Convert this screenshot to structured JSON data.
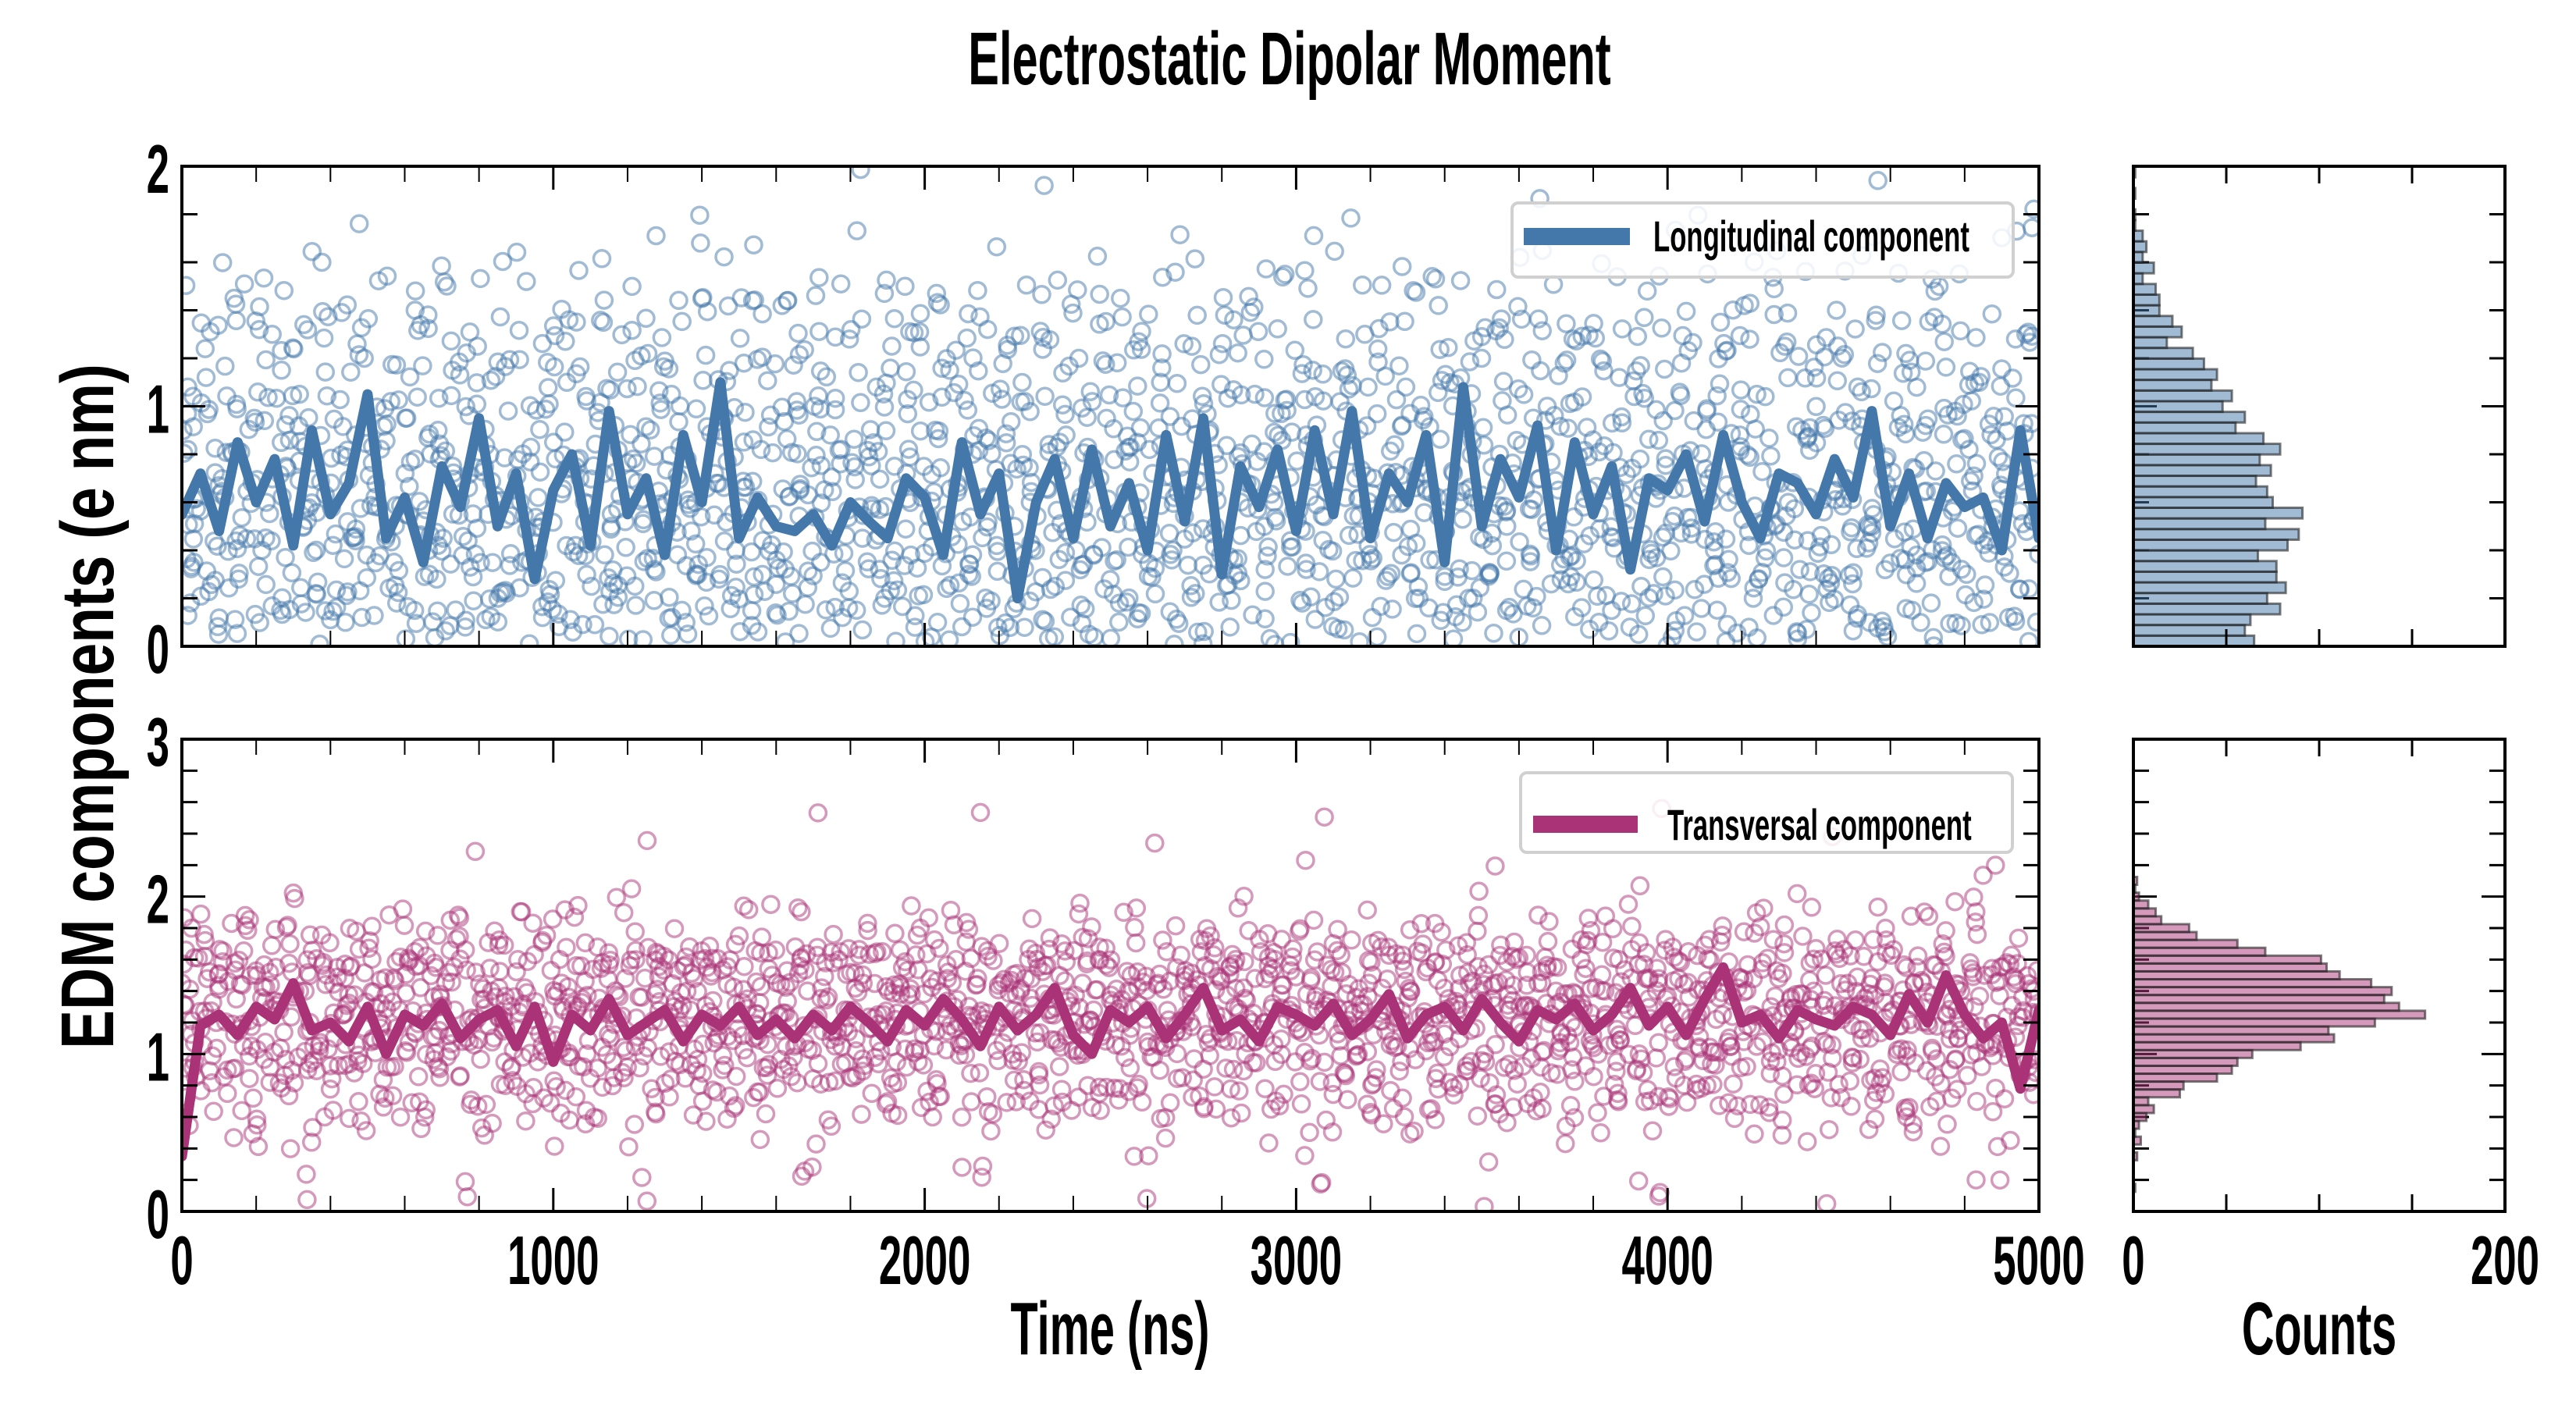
{
  "chart_data": {
    "type": "scatter",
    "title": "Electrostatic Dipolar Moment",
    "ylabel": "EDM components (e nm)",
    "xlabel": "Time (ns)",
    "hist_xlabel": "Counts",
    "xlim": [
      0,
      5000
    ],
    "x_ticks": [
      "0",
      "1000",
      "2000",
      "3000",
      "4000",
      "5000"
    ],
    "x_minor_step": 200,
    "hist_xlim": [
      0,
      200
    ],
    "hist_x_ticks": [
      "0",
      "200"
    ],
    "hist_x_minor_step": 50,
    "colors": {
      "longitudinal": "#4477AA",
      "transversal": "#AA3377"
    },
    "panels": [
      {
        "name": "longitudinal",
        "legend": "Longitudinal component",
        "legend_position": "upper-right",
        "ylim": [
          0,
          2
        ],
        "y_ticks": [
          "0",
          "1",
          "2"
        ],
        "y_minor_step": 0.2,
        "line_x_step_ns": 50,
        "line": [
          0.55,
          0.72,
          0.48,
          0.85,
          0.6,
          0.78,
          0.42,
          0.9,
          0.55,
          0.68,
          1.05,
          0.45,
          0.62,
          0.35,
          0.75,
          0.58,
          0.95,
          0.5,
          0.72,
          0.28,
          0.65,
          0.8,
          0.42,
          0.98,
          0.55,
          0.7,
          0.38,
          0.88,
          0.6,
          1.1,
          0.45,
          0.62,
          0.5,
          0.48,
          0.55,
          0.42,
          0.6,
          0.52,
          0.45,
          0.7,
          0.62,
          0.38,
          0.85,
          0.55,
          0.72,
          0.2,
          0.6,
          0.78,
          0.45,
          0.82,
          0.5,
          0.68,
          0.4,
          0.88,
          0.52,
          0.95,
          0.3,
          0.75,
          0.58,
          0.82,
          0.48,
          0.9,
          0.55,
          0.98,
          0.45,
          0.72,
          0.6,
          0.88,
          0.35,
          1.08,
          0.5,
          0.78,
          0.62,
          0.92,
          0.4,
          0.85,
          0.55,
          0.75,
          0.32,
          0.7,
          0.65,
          0.8,
          0.52,
          0.88,
          0.6,
          0.45,
          0.72,
          0.68,
          0.55,
          0.78,
          0.62,
          0.98,
          0.5,
          0.72,
          0.45,
          0.68,
          0.58,
          0.62,
          0.4,
          0.9,
          0.45
        ],
        "scatter": [
          0.82,
          0.35,
          1.12,
          0.05,
          0.62,
          1.45,
          0.28,
          0.95,
          0.4,
          1.3,
          0.15,
          0.75,
          1.05,
          0.5,
          0.22,
          1.6,
          0.68,
          0.1,
          0.88,
          1.2,
          0.38,
          0.58,
          1.02,
          0.18,
          0.72,
          1.4,
          0.3,
          0.9,
          0.45,
          1.15,
          0.08,
          0.66,
          1.25,
          0.55,
          0.2,
          0.98,
          0.35,
          1.52,
          0.62,
          0.12,
          0.85,
          1.1,
          0.42,
          0.7,
          0.25,
          1.35,
          0.5,
          0.92,
          0.03,
          0.78,
          1.22,
          0.32,
          0.6,
          1.05,
          0.15,
          0.48,
          1.68,
          0.72,
          0.28,
          0.95,
          0.4,
          1.18,
          0.06,
          0.82,
          0.55,
          1.42,
          0.22,
          0.65,
          1.0,
          0.35,
          0.88,
          0.12,
          1.28,
          0.58,
          0.45,
          1.08,
          0.2,
          0.75,
          1.5,
          0.38,
          0.62,
          0.9,
          0.1,
          1.15,
          0.52,
          0.3,
          0.8,
          1.32,
          0.42,
          0.68,
          0.18,
          1.02,
          0.6,
          1.92,
          0.25,
          0.85,
          0.48,
          1.2,
          0.05,
          0.7,
          0.95,
          0.36,
          1.45,
          0.58,
          0.14,
          0.82,
          1.1,
          0.4,
          0.64,
          1.25,
          0.22,
          0.9,
          0.5,
          1.38,
          0.08,
          0.76,
          1.05,
          0.32,
          0.6,
          1.55,
          0.44,
          0.18,
          0.88,
          1.15,
          0.54,
          0.28,
          0.98,
          0.7,
          1.3,
          0.12,
          0.6,
          0.84,
          0.38,
          1.08,
          0.2,
          0.72,
          1.42,
          0.48,
          0.03,
          0.92,
          0.62,
          1.2,
          0.3,
          0.8,
          0.5,
          1.62,
          0.16,
          0.7,
          1.0,
          0.42,
          0.26,
          1.28,
          0.58,
          0.86,
          0.1,
          0.66,
          1.12,
          0.36,
          0.78,
          1.48,
          0.22,
          0.94,
          0.52,
          1.18,
          0.06,
          0.74,
          0.4,
          1.35,
          0.6,
          0.88,
          0.2,
          1.05,
          0.46,
          0.68,
          1.25,
          0.32,
          0.9,
          0.14,
          0.56,
          1.4,
          0.7,
          0.26,
          1.08,
          0.5,
          0.82,
          0.04,
          0.62,
          1.22,
          0.38,
          0.92,
          0.18,
          1.5,
          0.58,
          0.76,
          0.3,
          1.1,
          0.44,
          0.86,
          0.12,
          0.7,
          1.3,
          0.52
        ],
        "hist_bin_width": 0.0444,
        "hist_counts": [
          65,
          60,
          63,
          79,
          72,
          82,
          77,
          77,
          67,
          83,
          89,
          71,
          91,
          75,
          72,
          66,
          74,
          68,
          79,
          70,
          55,
          60,
          48,
          53,
          42,
          45,
          38,
          32,
          18,
          26,
          21,
          14,
          14,
          12,
          5,
          11,
          5,
          7,
          5,
          1,
          1,
          0,
          1,
          0,
          1
        ]
      },
      {
        "name": "transversal",
        "legend": "Transversal component",
        "legend_position": "upper-right",
        "ylim": [
          0,
          3
        ],
        "y_ticks": [
          "0",
          "1",
          "2",
          "3"
        ],
        "y_minor_step": 0.2,
        "line_x_step_ns": 50,
        "line": [
          0.35,
          1.18,
          1.25,
          1.12,
          1.3,
          1.22,
          1.45,
          1.15,
          1.2,
          1.08,
          1.3,
          1.0,
          1.25,
          1.18,
          1.32,
          1.1,
          1.22,
          1.28,
          1.05,
          1.3,
          0.95,
          1.25,
          1.15,
          1.35,
          1.12,
          1.2,
          1.28,
          1.08,
          1.25,
          1.18,
          1.3,
          1.12,
          1.22,
          1.1,
          1.25,
          1.15,
          1.3,
          1.2,
          1.08,
          1.28,
          1.18,
          1.35,
          1.22,
          1.05,
          1.3,
          1.15,
          1.25,
          1.42,
          1.12,
          1.0,
          1.28,
          1.2,
          1.3,
          1.1,
          1.25,
          1.42,
          1.15,
          1.22,
          1.08,
          1.3,
          1.25,
          1.18,
          1.32,
          1.12,
          1.22,
          1.38,
          1.1,
          1.25,
          1.3,
          1.15,
          1.35,
          1.2,
          1.08,
          1.28,
          1.22,
          1.32,
          1.15,
          1.25,
          1.42,
          1.18,
          1.3,
          1.12,
          1.35,
          1.55,
          1.2,
          1.25,
          1.1,
          1.28,
          1.22,
          1.18,
          1.3,
          1.25,
          1.12,
          1.38,
          1.2,
          1.5,
          1.25,
          1.1,
          1.2,
          0.78,
          1.28
        ],
        "scatter": [
          1.45,
          0.95,
          1.62,
          1.2,
          0.75,
          1.35,
          1.88,
          1.05,
          1.5,
          0.82,
          1.28,
          1.7,
          0.98,
          1.4,
          1.15,
          0.6,
          1.55,
          1.25,
          0.88,
          1.78,
          1.1,
          1.32,
          0.72,
          1.48,
          1.02,
          1.65,
          1.22,
          0.92,
          1.38,
          1.85,
          1.08,
          0.68,
          1.52,
          1.18,
          1.42,
          0.8,
          1.6,
          1.3,
          0.95,
          1.72,
          1.12,
          1.45,
          0.58,
          1.35,
          1.0,
          1.58,
          1.25,
          0.85,
          1.48,
          2.05,
          1.15,
          0.78,
          1.62,
          1.3,
          1.05,
          1.4,
          0.7,
          1.55,
          1.2,
          0.9,
          1.75,
          1.35,
          1.1,
          0.62,
          1.5,
          1.25,
          0.98,
          1.68,
          1.18,
          1.42,
          0.82,
          1.58,
          1.28,
          1.02,
          1.45,
          0.75,
          1.65,
          1.22,
          0.95,
          1.38,
          1.8,
          1.12,
          0.6,
          1.52,
          1.3,
          1.08,
          1.48,
          0.88,
          1.62,
          1.2,
          1.0,
          1.4,
          0.7,
          1.55,
          1.25,
          0.92,
          1.7,
          1.15,
          1.45,
          0.8,
          1.6,
          1.32,
          1.05,
          1.5,
          0.35,
          1.28,
          0.98,
          1.65,
          1.18,
          0.85,
          1.42,
          1.72,
          1.1,
          0.65,
          1.55,
          1.3,
          1.0,
          1.48,
          0.78,
          1.6,
          1.22,
          0.95,
          1.38,
          1.85,
          1.12,
          0.58,
          1.52,
          1.28,
          1.05,
          1.45,
          0.9,
          1.68,
          1.2,
          0.72,
          1.4,
          1.02,
          1.58,
          1.25,
          0.82,
          1.5,
          1.15,
          1.78,
          0.95,
          1.35,
          0.62,
          1.62,
          1.3,
          1.08,
          1.45,
          0.88,
          1.55,
          1.2,
          0.98,
          1.72,
          1.12,
          1.4,
          0.75,
          1.6,
          1.28,
          1.0,
          1.48,
          0.12,
          1.35,
          0.92,
          1.65,
          1.18,
          0.8,
          1.52,
          1.25,
          1.05,
          1.42,
          0.68,
          1.58,
          1.3,
          0.95,
          1.82,
          1.15,
          1.38,
          0.78,
          1.5,
          2.38,
          1.22,
          0.98,
          1.62,
          1.1,
          0.85,
          1.45,
          1.28,
          0.6,
          1.55,
          1.2,
          1.02,
          1.7,
          0.72,
          1.4,
          1.3,
          0.92,
          1.5,
          0.2,
          1.58,
          1.18,
          0.82,
          1.35
        ],
        "hist_bin_width": 0.05,
        "hist_bin_start": 0.125,
        "hist_counts": [
          1,
          0,
          0,
          0,
          2,
          0,
          4,
          1,
          3,
          7,
          11,
          8,
          25,
          27,
          45,
          53,
          56,
          64,
          90,
          108,
          105,
          130,
          157,
          143,
          135,
          139,
          128,
          111,
          104,
          101,
          71,
          56,
          34,
          30,
          15,
          12,
          8,
          3,
          1,
          2
        ]
      }
    ]
  }
}
